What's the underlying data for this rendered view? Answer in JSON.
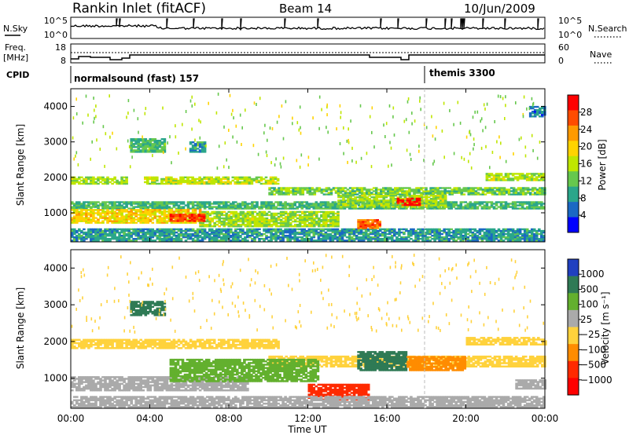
{
  "header": {
    "station": "Rankin Inlet (fitACF)",
    "beam": "Beam 14",
    "date": "10/Jun/2009"
  },
  "strips": {
    "noise": {
      "left_label": "N.Sky",
      "left_ticks": [
        "10^5",
        "10^0"
      ],
      "right_label": "N.Search",
      "right_ticks": [
        "10^5",
        "10^0"
      ]
    },
    "freq": {
      "left_label_1": "Freq.",
      "left_label_2": "[MHz]",
      "left_ticks": [
        "18",
        "8"
      ],
      "right_label": "Nave",
      "right_ticks": [
        "60",
        "0"
      ]
    },
    "cpid": {
      "label": "CPID",
      "programs": [
        {
          "name": "normalsound (fast) 157",
          "start_ut": 0
        },
        {
          "name": "themis 3300",
          "start_ut": 18
        }
      ]
    }
  },
  "panels": {
    "power": {
      "ylabel": "Slant Range [km]",
      "colorbar_label": "Power [dB]",
      "colorbar_ticks": [
        "28",
        "24",
        "20",
        "16",
        "12",
        "8",
        "4"
      ],
      "colors": [
        "#ff0000",
        "#ff4c00",
        "#ff9a00",
        "#ffd300",
        "#bfe600",
        "#66c84d",
        "#2aa68a",
        "#1a68c4",
        "#0000ff"
      ]
    },
    "velocity": {
      "ylabel": "Slant Range [km]",
      "colorbar_label": "Velocity [m s⁻¹]",
      "colorbar_ticks": [
        "1000",
        "500",
        "100",
        "25",
        "−25",
        "−100",
        "−500",
        "−1000"
      ],
      "colors": [
        "#2040c0",
        "#2f7a55",
        "#63b02e",
        "#aaaaaa",
        "#ffd23c",
        "#ff8c00",
        "#ff2a00",
        "#ff0000"
      ]
    }
  },
  "xaxis": {
    "label": "Time UT",
    "ticks": [
      "00:00",
      "04:00",
      "08:00",
      "12:00",
      "16:00",
      "20:00",
      "00:00"
    ]
  },
  "chart_data": [
    {
      "type": "heatmap",
      "title": "Power",
      "x": "UT hour (0-24)",
      "y": "Slant range (km)",
      "xlim": [
        0,
        24
      ],
      "ylim": [
        180,
        4500
      ],
      "yticks": [
        1000,
        2000,
        3000,
        4000
      ],
      "zlabel": "Power [dB]",
      "zlim": [
        0,
        30
      ],
      "bands": [
        {
          "t0": 0.0,
          "t1": 2.8,
          "r0": 1800,
          "r1": 2000,
          "v": 14
        },
        {
          "t0": 3.7,
          "t1": 10.5,
          "r0": 1800,
          "r1": 2000,
          "v": 15
        },
        {
          "t0": 10.0,
          "t1": 24.0,
          "r0": 1500,
          "r1": 1700,
          "v": 12
        },
        {
          "t0": 21.0,
          "t1": 24.0,
          "r0": 1900,
          "r1": 2100,
          "v": 14
        },
        {
          "t0": 0.0,
          "t1": 24.0,
          "r0": 1100,
          "r1": 1300,
          "v": 10
        },
        {
          "t0": 0.0,
          "t1": 6.5,
          "r0": 700,
          "r1": 1100,
          "v": 18
        },
        {
          "t0": 6.5,
          "t1": 13.5,
          "r0": 600,
          "r1": 1050,
          "v": 14
        },
        {
          "t0": 13.5,
          "t1": 19.0,
          "r0": 1150,
          "r1": 1500,
          "v": 14
        },
        {
          "t0": 0.0,
          "t1": 24.0,
          "r0": 200,
          "r1": 550,
          "v": 8
        },
        {
          "t0": 5.0,
          "t1": 6.8,
          "r0": 750,
          "r1": 950,
          "v": 26
        },
        {
          "t0": 16.5,
          "t1": 17.6,
          "r0": 1200,
          "r1": 1400,
          "v": 28
        },
        {
          "t0": 14.5,
          "t1": 15.6,
          "r0": 550,
          "r1": 800,
          "v": 24
        },
        {
          "t0": 3.0,
          "t1": 4.8,
          "r0": 2700,
          "r1": 3100,
          "v": 10
        },
        {
          "t0": 6.0,
          "t1": 6.8,
          "r0": 2700,
          "r1": 3000,
          "v": 8
        },
        {
          "t0": 23.2,
          "t1": 24.0,
          "r0": 3700,
          "r1": 4000,
          "v": 6
        }
      ]
    },
    {
      "type": "heatmap",
      "title": "Velocity",
      "x": "UT hour (0-24)",
      "y": "Slant range (km)",
      "xlim": [
        0,
        24
      ],
      "ylim": [
        180,
        4500
      ],
      "yticks": [
        1000,
        2000,
        3000,
        4000
      ],
      "zlabel": "Velocity [m s^-1]",
      "zlevels": [
        1000,
        500,
        100,
        25,
        -25,
        -100,
        -500,
        -1000
      ],
      "bands": [
        {
          "t0": 0.0,
          "t1": 10.5,
          "r0": 1800,
          "r1": 2050,
          "v": 0
        },
        {
          "t0": 10.0,
          "t1": 24.0,
          "r0": 1300,
          "r1": 1600,
          "v": 0
        },
        {
          "t0": 20.0,
          "t1": 24.0,
          "r0": 1900,
          "r1": 2100,
          "v": 0
        },
        {
          "t0": 0.0,
          "t1": 9.0,
          "r0": 650,
          "r1": 1050,
          "v": 80
        },
        {
          "t0": 5.0,
          "t1": 12.5,
          "r0": 900,
          "r1": 1500,
          "v": 300
        },
        {
          "t0": 12.0,
          "t1": 15.0,
          "r0": 400,
          "r1": 850,
          "v": -200
        },
        {
          "t0": 14.5,
          "t1": 17.0,
          "r0": 1200,
          "r1": 1700,
          "v": 700
        },
        {
          "t0": 17.0,
          "t1": 20.0,
          "r0": 1200,
          "r1": 1600,
          "v": -80
        },
        {
          "t0": 3.0,
          "t1": 4.8,
          "r0": 2700,
          "r1": 3100,
          "v": 600
        },
        {
          "t0": 0.0,
          "t1": 24.0,
          "r0": 200,
          "r1": 500,
          "v": 60
        },
        {
          "t0": 22.5,
          "t1": 24.0,
          "r0": 700,
          "r1": 950,
          "v": 60
        }
      ]
    }
  ]
}
